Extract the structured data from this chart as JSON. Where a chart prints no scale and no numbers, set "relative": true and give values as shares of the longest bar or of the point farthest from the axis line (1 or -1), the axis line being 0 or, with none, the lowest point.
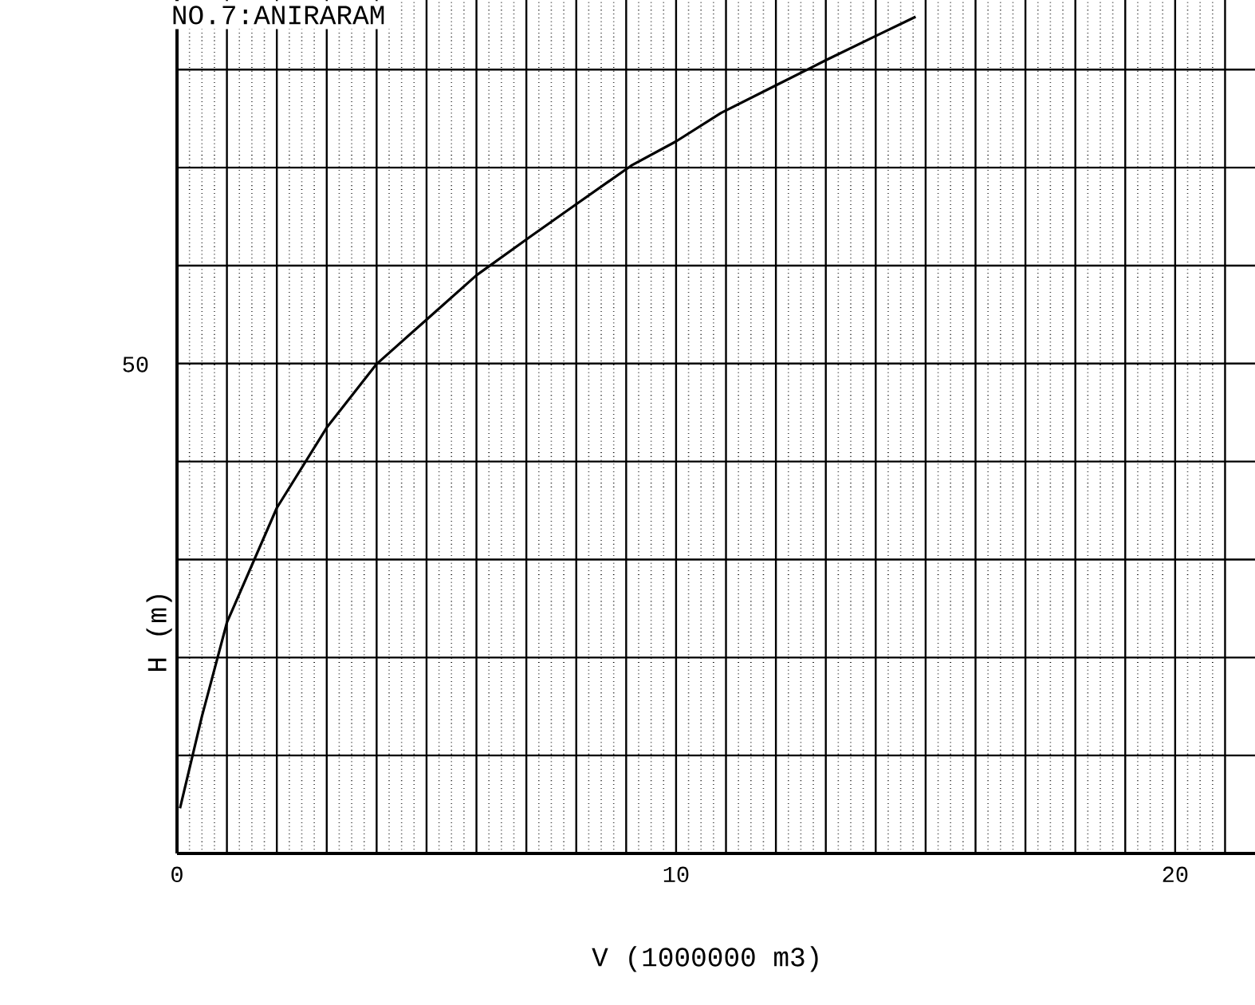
{
  "chart_data": {
    "type": "line",
    "title": "NO.7:ANIRARAM",
    "xlabel": "V (1000000 m3)",
    "ylabel": "H (m)",
    "relative": true,
    "annotations": [
      "50"
    ],
    "x": [
      0.06,
      0.5,
      1.0,
      2.0,
      3.0,
      4.0,
      5.0,
      6.0,
      7.1,
      8.0,
      9.1,
      10.0,
      10.9,
      12.0,
      13.0,
      14.0,
      14.8
    ],
    "series": [
      {
        "color": "#000000",
        "values": [
          0.054,
          0.164,
          0.276,
          0.413,
          0.509,
          0.585,
          0.638,
          0.691,
          0.738,
          0.776,
          0.822,
          0.851,
          0.885,
          0.918,
          0.948,
          0.977,
          1
        ]
      }
    ],
    "xlim": [
      0,
      21.6
    ],
    "xticks": [
      0,
      {
        "value": 1,
        "label": null
      },
      {
        "value": 2,
        "label": null
      },
      {
        "value": 3,
        "label": null
      },
      {
        "value": 4,
        "label": null
      },
      {
        "value": 5,
        "label": null
      },
      {
        "value": 6,
        "label": null
      },
      {
        "value": 7,
        "label": null
      },
      {
        "value": 8,
        "label": null
      },
      {
        "value": 9,
        "label": null
      },
      10,
      {
        "value": 11,
        "label": null
      },
      {
        "value": 12,
        "label": null
      },
      {
        "value": 13,
        "label": null
      },
      {
        "value": 14,
        "label": null
      },
      {
        "value": 15,
        "label": null
      },
      {
        "value": 16,
        "label": null
      },
      {
        "value": 17,
        "label": null
      },
      {
        "value": 18,
        "label": null
      },
      {
        "value": 19,
        "label": null
      },
      20,
      {
        "value": 21,
        "label": null
      }
    ],
    "grid": true
  }
}
